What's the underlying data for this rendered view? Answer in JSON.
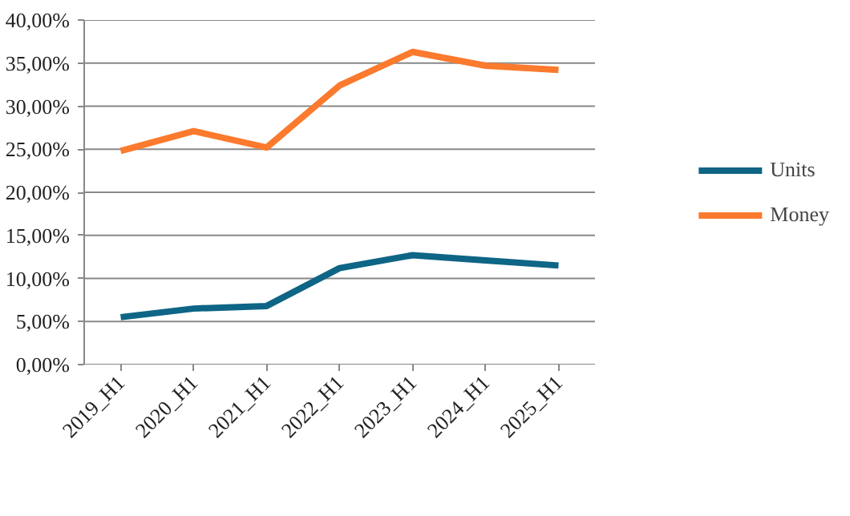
{
  "chart_data": {
    "type": "line",
    "categories": [
      "2019_H1",
      "2020_H1",
      "2021_H1",
      "2022_H1",
      "2023_H1",
      "2024_H1",
      "2025_H1"
    ],
    "series": [
      {
        "name": "Units",
        "color": "#0e6585",
        "values": [
          5.5,
          6.5,
          6.8,
          11.2,
          12.7,
          12.1,
          11.5
        ]
      },
      {
        "name": "Money",
        "color": "#fb7a2d",
        "values": [
          24.8,
          27.1,
          25.2,
          32.4,
          36.3,
          34.7,
          34.2
        ]
      }
    ],
    "ylim": [
      0,
      40
    ],
    "yticks": [
      {
        "value": 0,
        "label": "0,00%"
      },
      {
        "value": 5,
        "label": "5,00%"
      },
      {
        "value": 10,
        "label": "10,00%"
      },
      {
        "value": 15,
        "label": "15,00%"
      },
      {
        "value": 20,
        "label": "20,00%"
      },
      {
        "value": 25,
        "label": "25,00%"
      },
      {
        "value": 30,
        "label": "30,00%"
      },
      {
        "value": 35,
        "label": "35,00%"
      },
      {
        "value": 40,
        "label": "40,00%"
      }
    ],
    "grid": "y",
    "legend": "right",
    "marker": "none",
    "line_style": "solid"
  }
}
